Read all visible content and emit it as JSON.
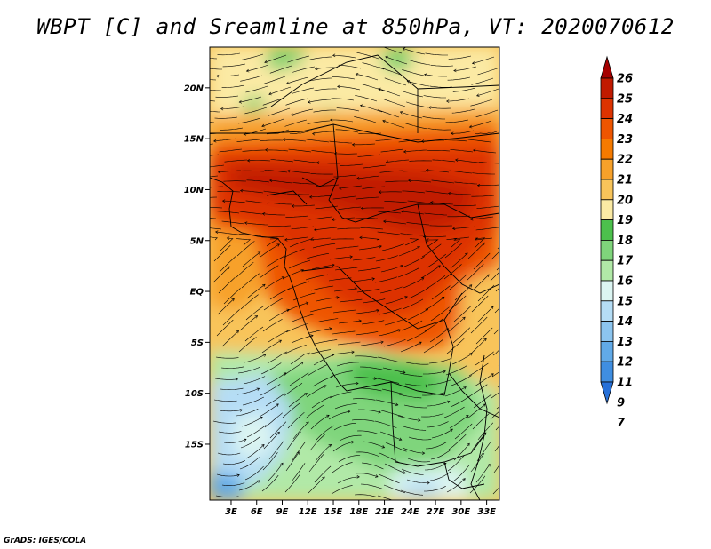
{
  "title": "WBPT [C] and Sreamline at 850hPa, VT: 2020070612",
  "footer": "GrADS: IGES/COLA",
  "map": {
    "lat_labels": [
      {
        "label": "20N",
        "lat": 20
      },
      {
        "label": "15N",
        "lat": 15
      },
      {
        "label": "10N",
        "lat": 10
      },
      {
        "label": "5N",
        "lat": 5
      },
      {
        "label": "EQ",
        "lat": 0
      },
      {
        "label": "5S",
        "lat": -5
      },
      {
        "label": "10S",
        "lat": -10
      },
      {
        "label": "15S",
        "lat": -15
      }
    ],
    "lon_labels": [
      {
        "label": "3E",
        "lon": 3
      },
      {
        "label": "6E",
        "lon": 6
      },
      {
        "label": "9E",
        "lon": 9
      },
      {
        "label": "12E",
        "lon": 12
      },
      {
        "label": "15E",
        "lon": 15
      },
      {
        "label": "18E",
        "lon": 18
      },
      {
        "label": "21E",
        "lon": 21
      },
      {
        "label": "24E",
        "lon": 24
      },
      {
        "label": "27E",
        "lon": 27
      },
      {
        "label": "30E",
        "lon": 30
      },
      {
        "label": "33E",
        "lon": 33
      }
    ],
    "lon_range": [
      0.5,
      34.5
    ],
    "lat_range": [
      -20.5,
      24
    ]
  },
  "colorbar": {
    "levels": [
      "26",
      "25",
      "24",
      "23",
      "22",
      "21",
      "20",
      "19",
      "18",
      "17",
      "16",
      "15",
      "14",
      "13",
      "12",
      "11",
      "9",
      "7"
    ],
    "colors": [
      "#a50000",
      "#c11a00",
      "#dd3300",
      "#ee5500",
      "#f57a00",
      "#f7a12a",
      "#f8c45a",
      "#fbeaa4",
      "#4cc04c",
      "#7fd57b",
      "#b1e9a7",
      "#dcf5f2",
      "#b5ddf5",
      "#8cc5ef",
      "#61aae8",
      "#3f8ee1",
      "#2670d8"
    ]
  }
}
